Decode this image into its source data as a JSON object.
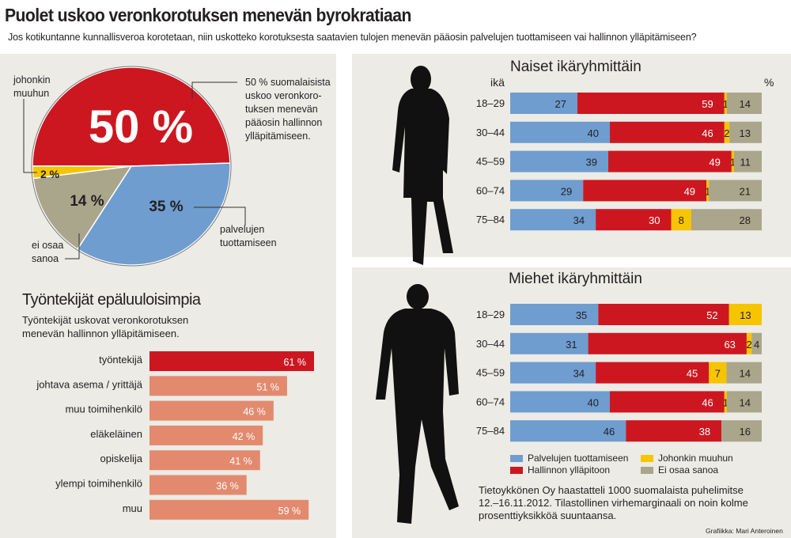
{
  "header": {
    "title": "Puolet uskoo veronkorotuksen menevän byrokratiaan",
    "subtitle": "Jos kotikuntanne kunnallisveroa korotetaan, niin uskotteko korotuksesta saatavien tulojen menevän pääosin palvelujen tuottamiseen vai hallinnon ylläpitämiseen?"
  },
  "colors": {
    "palvelut": "#6f9dcf",
    "hallinto": "#cd1720",
    "muu": "#f7c400",
    "eos": "#aaa68b",
    "salmon": "#e38a6e",
    "panel": "#ecebe6"
  },
  "pie": {
    "big_label": "50 %",
    "callout": "50 % suomalaisista uskoo veronkoro-tuksen menevän pääosin hallinnon ylläpitämiseen.",
    "callout_lines": [
      "50 % suomalaisista",
      "uskoo veronkoro-",
      "tuksen menevän",
      "pääosin hallinnon",
      "ylläpitämiseen."
    ],
    "label_muu": [
      "johonkin",
      "muuhun"
    ],
    "label_palvelut": [
      "palvelujen",
      "tuottamiseen"
    ],
    "label_eos": [
      "ei osaa",
      "sanoa"
    ]
  },
  "left": {
    "heading": "Työntekijät epäluuloisimpia",
    "description": [
      "Työntekijät uskovat veronkorotuksen",
      "menevän hallinnon ylläpitämiseen."
    ]
  },
  "women": {
    "heading": "Naiset ikäryhmittäin",
    "axis_label": "ikä",
    "unit": "%"
  },
  "men": {
    "heading": "Miehet ikäryhmittäin"
  },
  "legend": [
    "Palvelujen tuottamiseen",
    "Hallinnon ylläpitoon",
    "Johonkin muuhun",
    "Ei osaa sanoa"
  ],
  "source": [
    "Tietoykkönen Oy haastatteli 1000 suomalaista puhelimitse",
    "12.–16.11.2012. Tilastollinen virhemarginaali on noin kolme",
    "prosenttiyksikköä suuntaansa."
  ],
  "credit": "Grafiikka: Mari Anteroinen",
  "chart_data": [
    {
      "type": "pie",
      "categories": [
        "Hallinnon ylläpitoon",
        "Palvelujen tuottamiseen",
        "Ei osaa sanoa",
        "Johonkin muuhun"
      ],
      "values": [
        50,
        35,
        14,
        2
      ],
      "labels": [
        "50 %",
        "35 %",
        "14 %",
        "2 %"
      ]
    },
    {
      "type": "bar",
      "orientation": "horizontal",
      "title": "Työntekijät epäluuloisimpia",
      "categories": [
        "työntekijä",
        "johtava asema / yrittäjä",
        "muu toimihenkilö",
        "eläkeläinen",
        "opiskelija",
        "ylempi toimihenkilö",
        "muu"
      ],
      "values": [
        61,
        51,
        46,
        42,
        41,
        36,
        59
      ],
      "labels": [
        "61 %",
        "51 %",
        "46 %",
        "42 %",
        "41 %",
        "36 %",
        "59 %"
      ],
      "highlight": "työntekijä"
    },
    {
      "type": "bar",
      "stacked": true,
      "orientation": "horizontal",
      "title": "Naiset ikäryhmittäin",
      "categories": [
        "18–29",
        "30–44",
        "45–59",
        "60–74",
        "75–84"
      ],
      "series": [
        {
          "name": "Palvelujen tuottamiseen",
          "values": [
            27,
            40,
            39,
            29,
            34
          ]
        },
        {
          "name": "Hallinnon ylläpitoon",
          "values": [
            59,
            46,
            49,
            49,
            30
          ]
        },
        {
          "name": "Johonkin muuhun",
          "values": [
            1,
            2,
            1,
            1,
            8
          ]
        },
        {
          "name": "Ei osaa sanoa",
          "values": [
            14,
            13,
            11,
            21,
            28
          ]
        }
      ]
    },
    {
      "type": "bar",
      "stacked": true,
      "orientation": "horizontal",
      "title": "Miehet ikäryhmittäin",
      "categories": [
        "18–29",
        "30–44",
        "45–59",
        "60–74",
        "75–84"
      ],
      "series": [
        {
          "name": "Palvelujen tuottamiseen",
          "values": [
            35,
            31,
            34,
            40,
            46
          ]
        },
        {
          "name": "Hallinnon ylläpitoon",
          "values": [
            52,
            63,
            45,
            46,
            38
          ]
        },
        {
          "name": "Johonkin muuhun",
          "values": [
            13,
            2,
            7,
            1,
            0
          ]
        },
        {
          "name": "Ei osaa sanoa",
          "values": [
            0,
            4,
            14,
            14,
            16
          ]
        }
      ]
    }
  ]
}
